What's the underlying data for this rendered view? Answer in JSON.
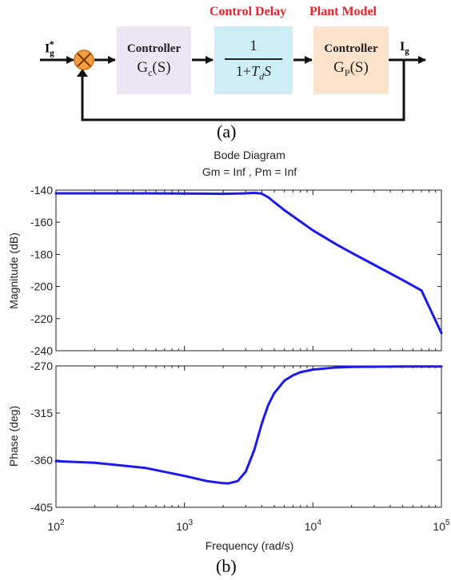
{
  "figure_a": {
    "input_label": "I",
    "input_sub": "g",
    "input_sup": "*",
    "output_label": "I",
    "output_sub": "g",
    "control_delay_title": "Control Delay",
    "plant_model_title": "Plant Model",
    "controller_box": {
      "title": "Controller",
      "formula_main": "G",
      "formula_sub": "c",
      "formula_tail": "(S)"
    },
    "delay_box": {
      "numerator": "1",
      "den_prefix": "1+",
      "den_var": "T",
      "den_sub": "d",
      "den_suffix": "S"
    },
    "plant_box": {
      "title": "Controller",
      "formula_main": "G",
      "formula_sub": "P",
      "formula_tail": "(S)"
    },
    "colors": {
      "controller_fill": "#ece5f4",
      "delay_fill": "#cdeef7",
      "plant_fill": "#fde3cc",
      "sum_fill": "#f5a040",
      "label_red": "#e8202a"
    },
    "caption": "(a)"
  },
  "figure_b": {
    "caption": "(b)"
  },
  "chart_data": {
    "type": "line",
    "title": "Bode Diagram",
    "subtitle": "Gm = Inf ,  Pm = Inf",
    "xlabel": "Frequency  (rad/s)",
    "xscale": "log",
    "xlim": [
      100,
      100000
    ],
    "x_ticks": [
      {
        "value": 100,
        "base": "10",
        "exp": "2"
      },
      {
        "value": 1000,
        "base": "10",
        "exp": "3"
      },
      {
        "value": 10000,
        "base": "10",
        "exp": "4"
      },
      {
        "value": 100000,
        "base": "10",
        "exp": "5"
      }
    ],
    "line_color": "#1a1aee",
    "grid": false,
    "subplots": [
      {
        "name": "magnitude",
        "ylabel": "Magnitude (dB)",
        "ylim": [
          -240,
          -140
        ],
        "yticks": [
          -140,
          -160,
          -180,
          -200,
          -220,
          -240
        ],
        "x": [
          100,
          200,
          500,
          1000,
          2000,
          3000,
          3500,
          4000,
          4500,
          5000,
          6000,
          8000,
          10000,
          15000,
          20000,
          30000,
          50000,
          70000,
          100000
        ],
        "y": [
          -142.0,
          -142.0,
          -142.0,
          -142.1,
          -142.3,
          -142.0,
          -141.7,
          -142.2,
          -144.5,
          -147.5,
          -152.5,
          -159.6,
          -165.0,
          -173.5,
          -179.0,
          -186.5,
          -196.0,
          -202.5,
          -229.0
        ]
      },
      {
        "name": "phase",
        "ylabel": "Phase (deg)",
        "ylim": [
          -405,
          -270
        ],
        "yticks": [
          -270,
          -315,
          -360,
          -405
        ],
        "x": [
          100,
          200,
          500,
          1000,
          1500,
          2000,
          2200,
          2600,
          3000,
          3500,
          4000,
          4500,
          5000,
          6000,
          7000,
          8000,
          10000,
          15000,
          20000,
          50000,
          100000
        ],
        "y": [
          -361.0,
          -362.5,
          -367.5,
          -375.0,
          -380.0,
          -382.0,
          -382.2,
          -380.0,
          -371.0,
          -350.0,
          -325.0,
          -307.0,
          -296.0,
          -284.0,
          -279.0,
          -276.0,
          -273.5,
          -271.5,
          -271.0,
          -270.5,
          -270.5
        ]
      }
    ]
  }
}
